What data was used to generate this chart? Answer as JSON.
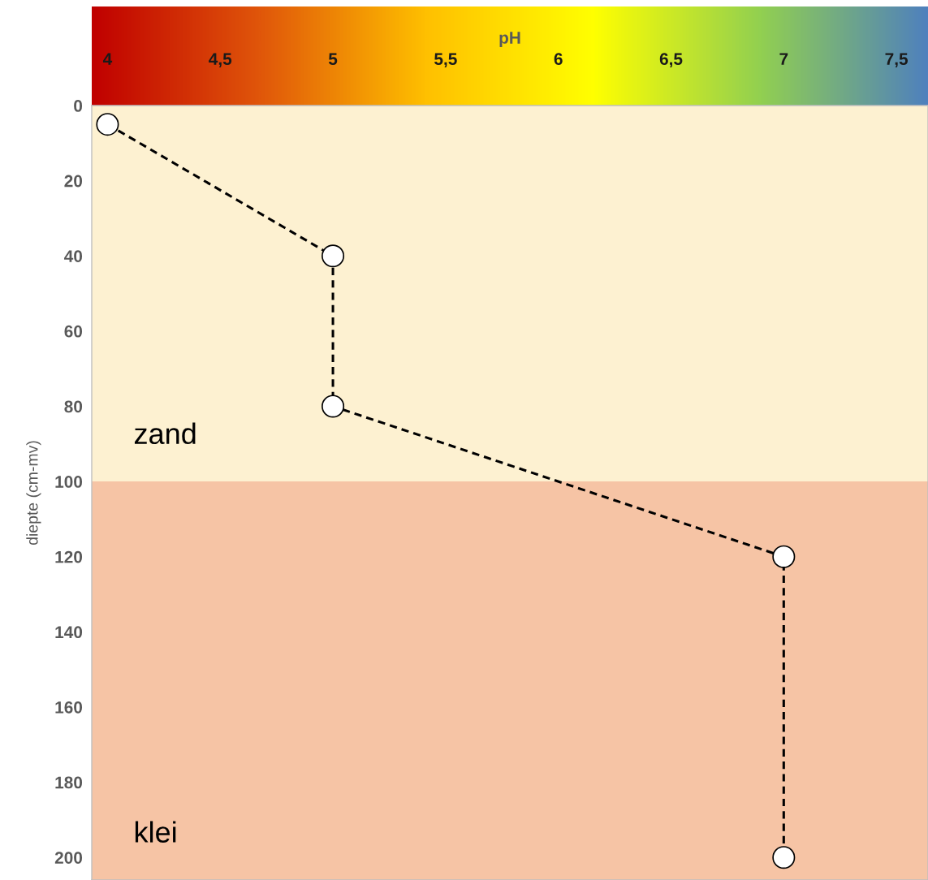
{
  "chart_data": {
    "type": "line",
    "xlabel": "pH",
    "ylabel": "diepte (cm-mv)",
    "x": [
      4,
      5,
      5,
      7,
      7
    ],
    "series": [
      {
        "color": "#000000",
        "values": [
          5,
          40,
          80,
          120,
          200
        ]
      }
    ],
    "xlim": [
      3.93,
      7.64
    ],
    "xticks": [
      4,
      {
        "value": 4.5,
        "label": "4,5"
      },
      5,
      {
        "value": 5.5,
        "label": "5,5"
      },
      6,
      {
        "value": 6.5,
        "label": "6,5"
      },
      7,
      {
        "value": 7.5,
        "label": "7,5"
      }
    ],
    "ylim": [
      206,
      0
    ],
    "yticks": [
      0,
      20,
      40,
      60,
      80,
      100,
      120,
      140,
      160,
      180,
      200
    ],
    "bands": [
      {
        "axis": "y",
        "from": 0,
        "to": 100,
        "label": "zand",
        "color": "#fdf1d1"
      },
      {
        "axis": "y",
        "from": 100,
        "to": 206,
        "label": "klei",
        "color": "#f6c4a5"
      }
    ],
    "marker": "circle",
    "line_style": "dashed",
    "grid": false,
    "legend": false
  }
}
